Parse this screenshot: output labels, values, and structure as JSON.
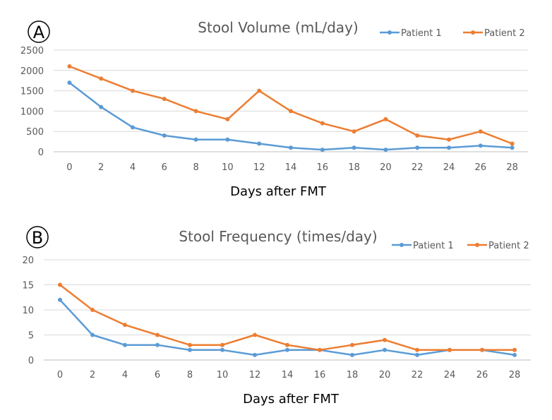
{
  "chart_data": [
    {
      "type": "line",
      "panel_label": "A",
      "title": "Stool Volume (mL/day)",
      "xlabel": "Days after FMT",
      "ylabel": "",
      "categories": [
        "0",
        "2",
        "4",
        "6",
        "8",
        "10",
        "12",
        "14",
        "16",
        "18",
        "20",
        "22",
        "24",
        "26",
        "28"
      ],
      "y_ticks": [
        "0",
        "500",
        "1000",
        "1500",
        "2000",
        "2500"
      ],
      "ylim": [
        0,
        2500
      ],
      "grid": true,
      "legend_position": "top-right",
      "series": [
        {
          "name": "Patient 1",
          "color": "#5B9BD5",
          "values": [
            1700,
            1100,
            600,
            400,
            300,
            300,
            200,
            100,
            50,
            100,
            50,
            100,
            100,
            150,
            100
          ]
        },
        {
          "name": "Patient 2",
          "color": "#ED7D31",
          "values": [
            2100,
            1800,
            1500,
            1300,
            1000,
            800,
            1500,
            1000,
            700,
            500,
            800,
            400,
            300,
            500,
            200
          ]
        }
      ]
    },
    {
      "type": "line",
      "panel_label": "B",
      "title": "Stool Frequency (times/day)",
      "xlabel": "Days after FMT",
      "ylabel": "",
      "categories": [
        "0",
        "2",
        "4",
        "6",
        "8",
        "10",
        "12",
        "14",
        "16",
        "18",
        "20",
        "22",
        "24",
        "26",
        "28"
      ],
      "y_ticks": [
        "0",
        "5",
        "10",
        "15",
        "20"
      ],
      "ylim": [
        0,
        20
      ],
      "grid": true,
      "legend_position": "top-right",
      "series": [
        {
          "name": "Patient 1",
          "color": "#5B9BD5",
          "values": [
            12,
            5,
            3,
            3,
            2,
            2,
            1,
            2,
            2,
            1,
            2,
            1,
            2,
            2,
            1
          ]
        },
        {
          "name": "Patient 2",
          "color": "#ED7D31",
          "values": [
            15,
            10,
            7,
            5,
            3,
            3,
            5,
            3,
            2,
            3,
            4,
            2,
            2,
            2,
            2
          ]
        }
      ]
    }
  ]
}
